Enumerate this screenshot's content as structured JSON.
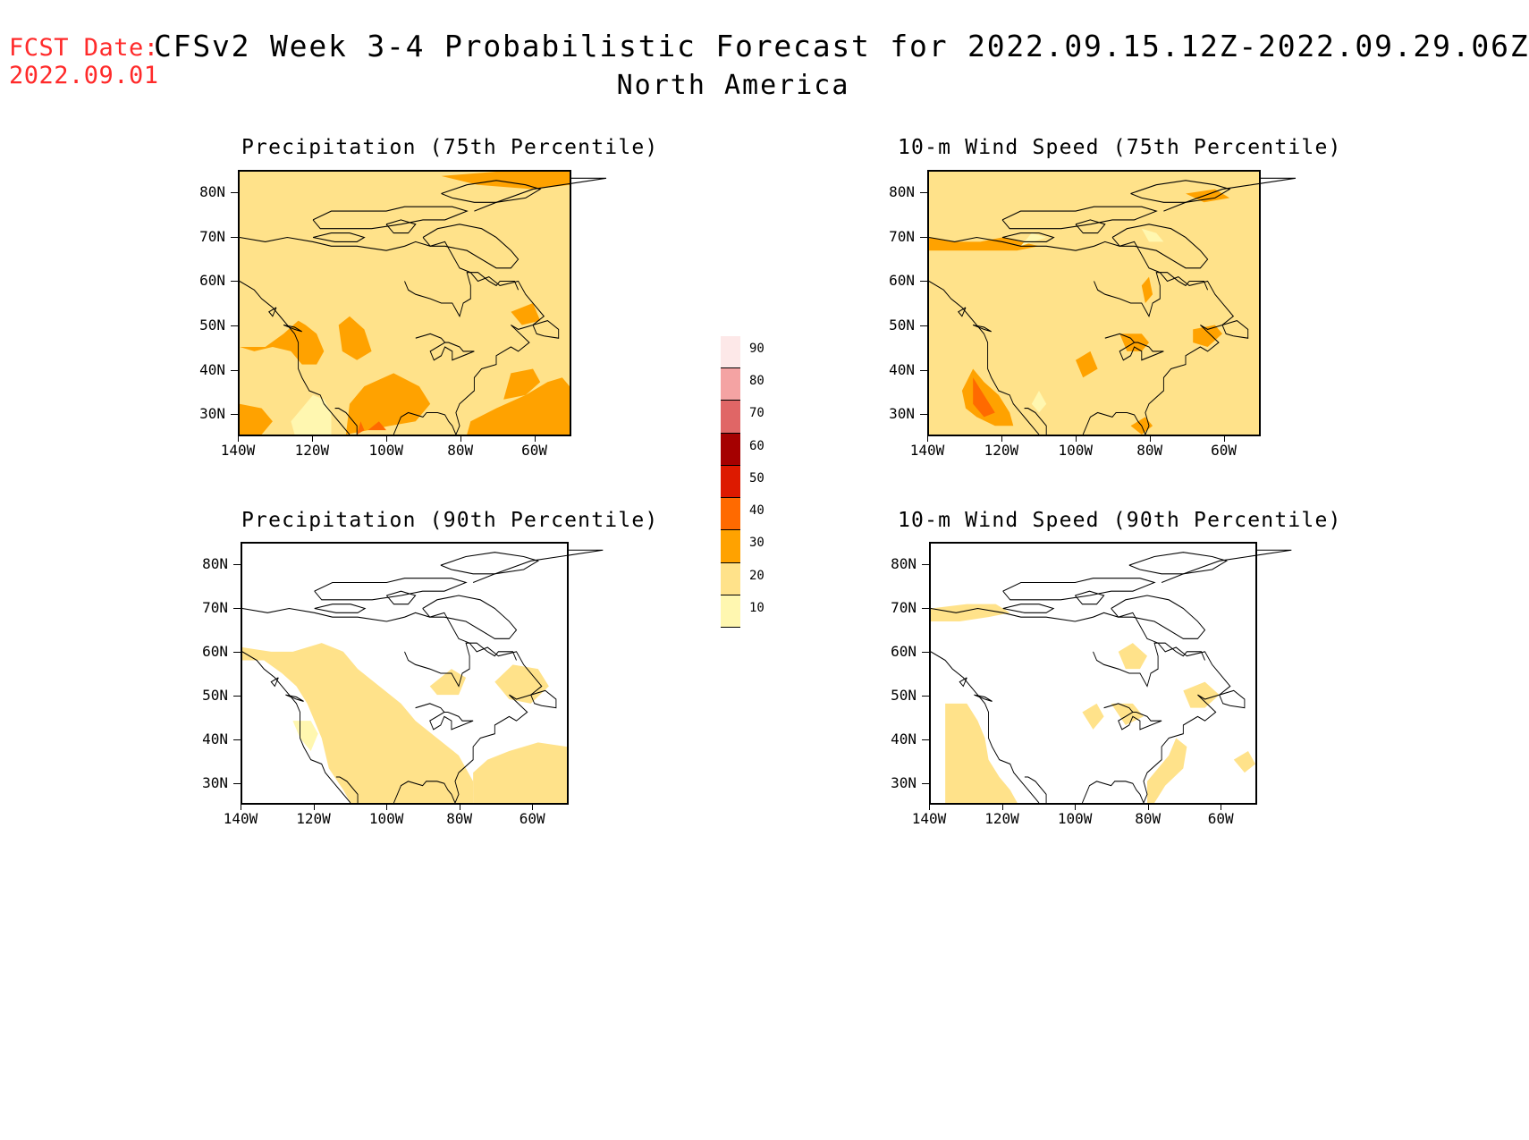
{
  "header": {
    "fcst_label": "FCST Date:",
    "fcst_date": "2022.09.01",
    "title": "CFSv2 Week 3-4 Probabilistic Forecast for 2022.09.15.12Z-2022.09.29.06Z",
    "subtitle": "North America"
  },
  "axes": {
    "lat_labels": [
      "80N",
      "70N",
      "60N",
      "50N",
      "40N",
      "30N"
    ],
    "lon_labels": [
      "140W",
      "120W",
      "100W",
      "80W",
      "60W"
    ]
  },
  "panels": [
    {
      "title": "Precipitation (75th Percentile)",
      "base_level": 20
    },
    {
      "title": "10-m Wind Speed (75th Percentile)",
      "base_level": 20
    },
    {
      "title": "Precipitation (90th Percentile)",
      "base_level": 10
    },
    {
      "title": "10-m Wind Speed (90th Percentile)",
      "base_level": 10
    }
  ],
  "colorbar": {
    "labels": [
      "90",
      "80",
      "70",
      "60",
      "50",
      "40",
      "30",
      "20",
      "10"
    ],
    "colors": [
      "#fde8e8",
      "#f4a3a3",
      "#e06666",
      "#a50000",
      "#dd1a00",
      "#ff6a00",
      "#ffa200",
      "#ffe28a",
      "#fff7b0"
    ]
  }
}
